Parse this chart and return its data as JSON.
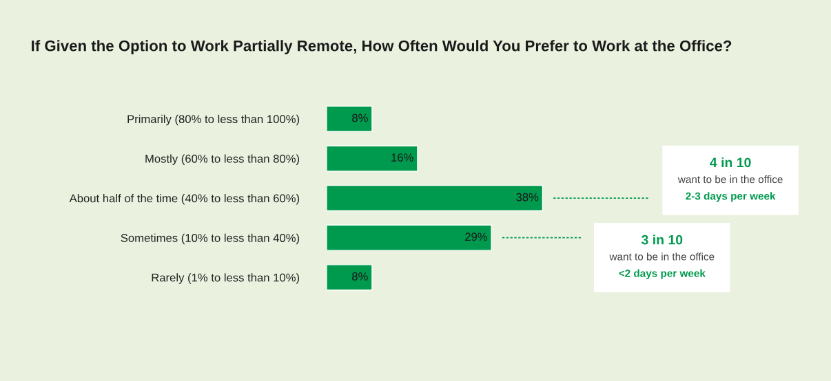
{
  "chart_data": {
    "type": "bar",
    "orientation": "horizontal",
    "title": "If Given the Option to Work Partially Remote, How Often Would You Prefer to Work at the Office?",
    "categories": [
      "Primarily (80% to less than 100%)",
      "Mostly (60% to less than 80%)",
      "About half of the time (40% to less than 60%)",
      "Sometimes (10% to less than 40%)",
      "Rarely (1% to less than 10%)"
    ],
    "values": [
      8,
      16,
      38,
      29,
      8
    ],
    "value_labels": [
      "8%",
      "16%",
      "38%",
      "29%",
      "8%"
    ],
    "color": "#009a4e",
    "annotations": [
      "4 in 10\nwant to be in the office\n2-3 days per week",
      "3 in 10\nwant to be in the office\n<2 days per week"
    ],
    "grid": false,
    "legend": false
  }
}
